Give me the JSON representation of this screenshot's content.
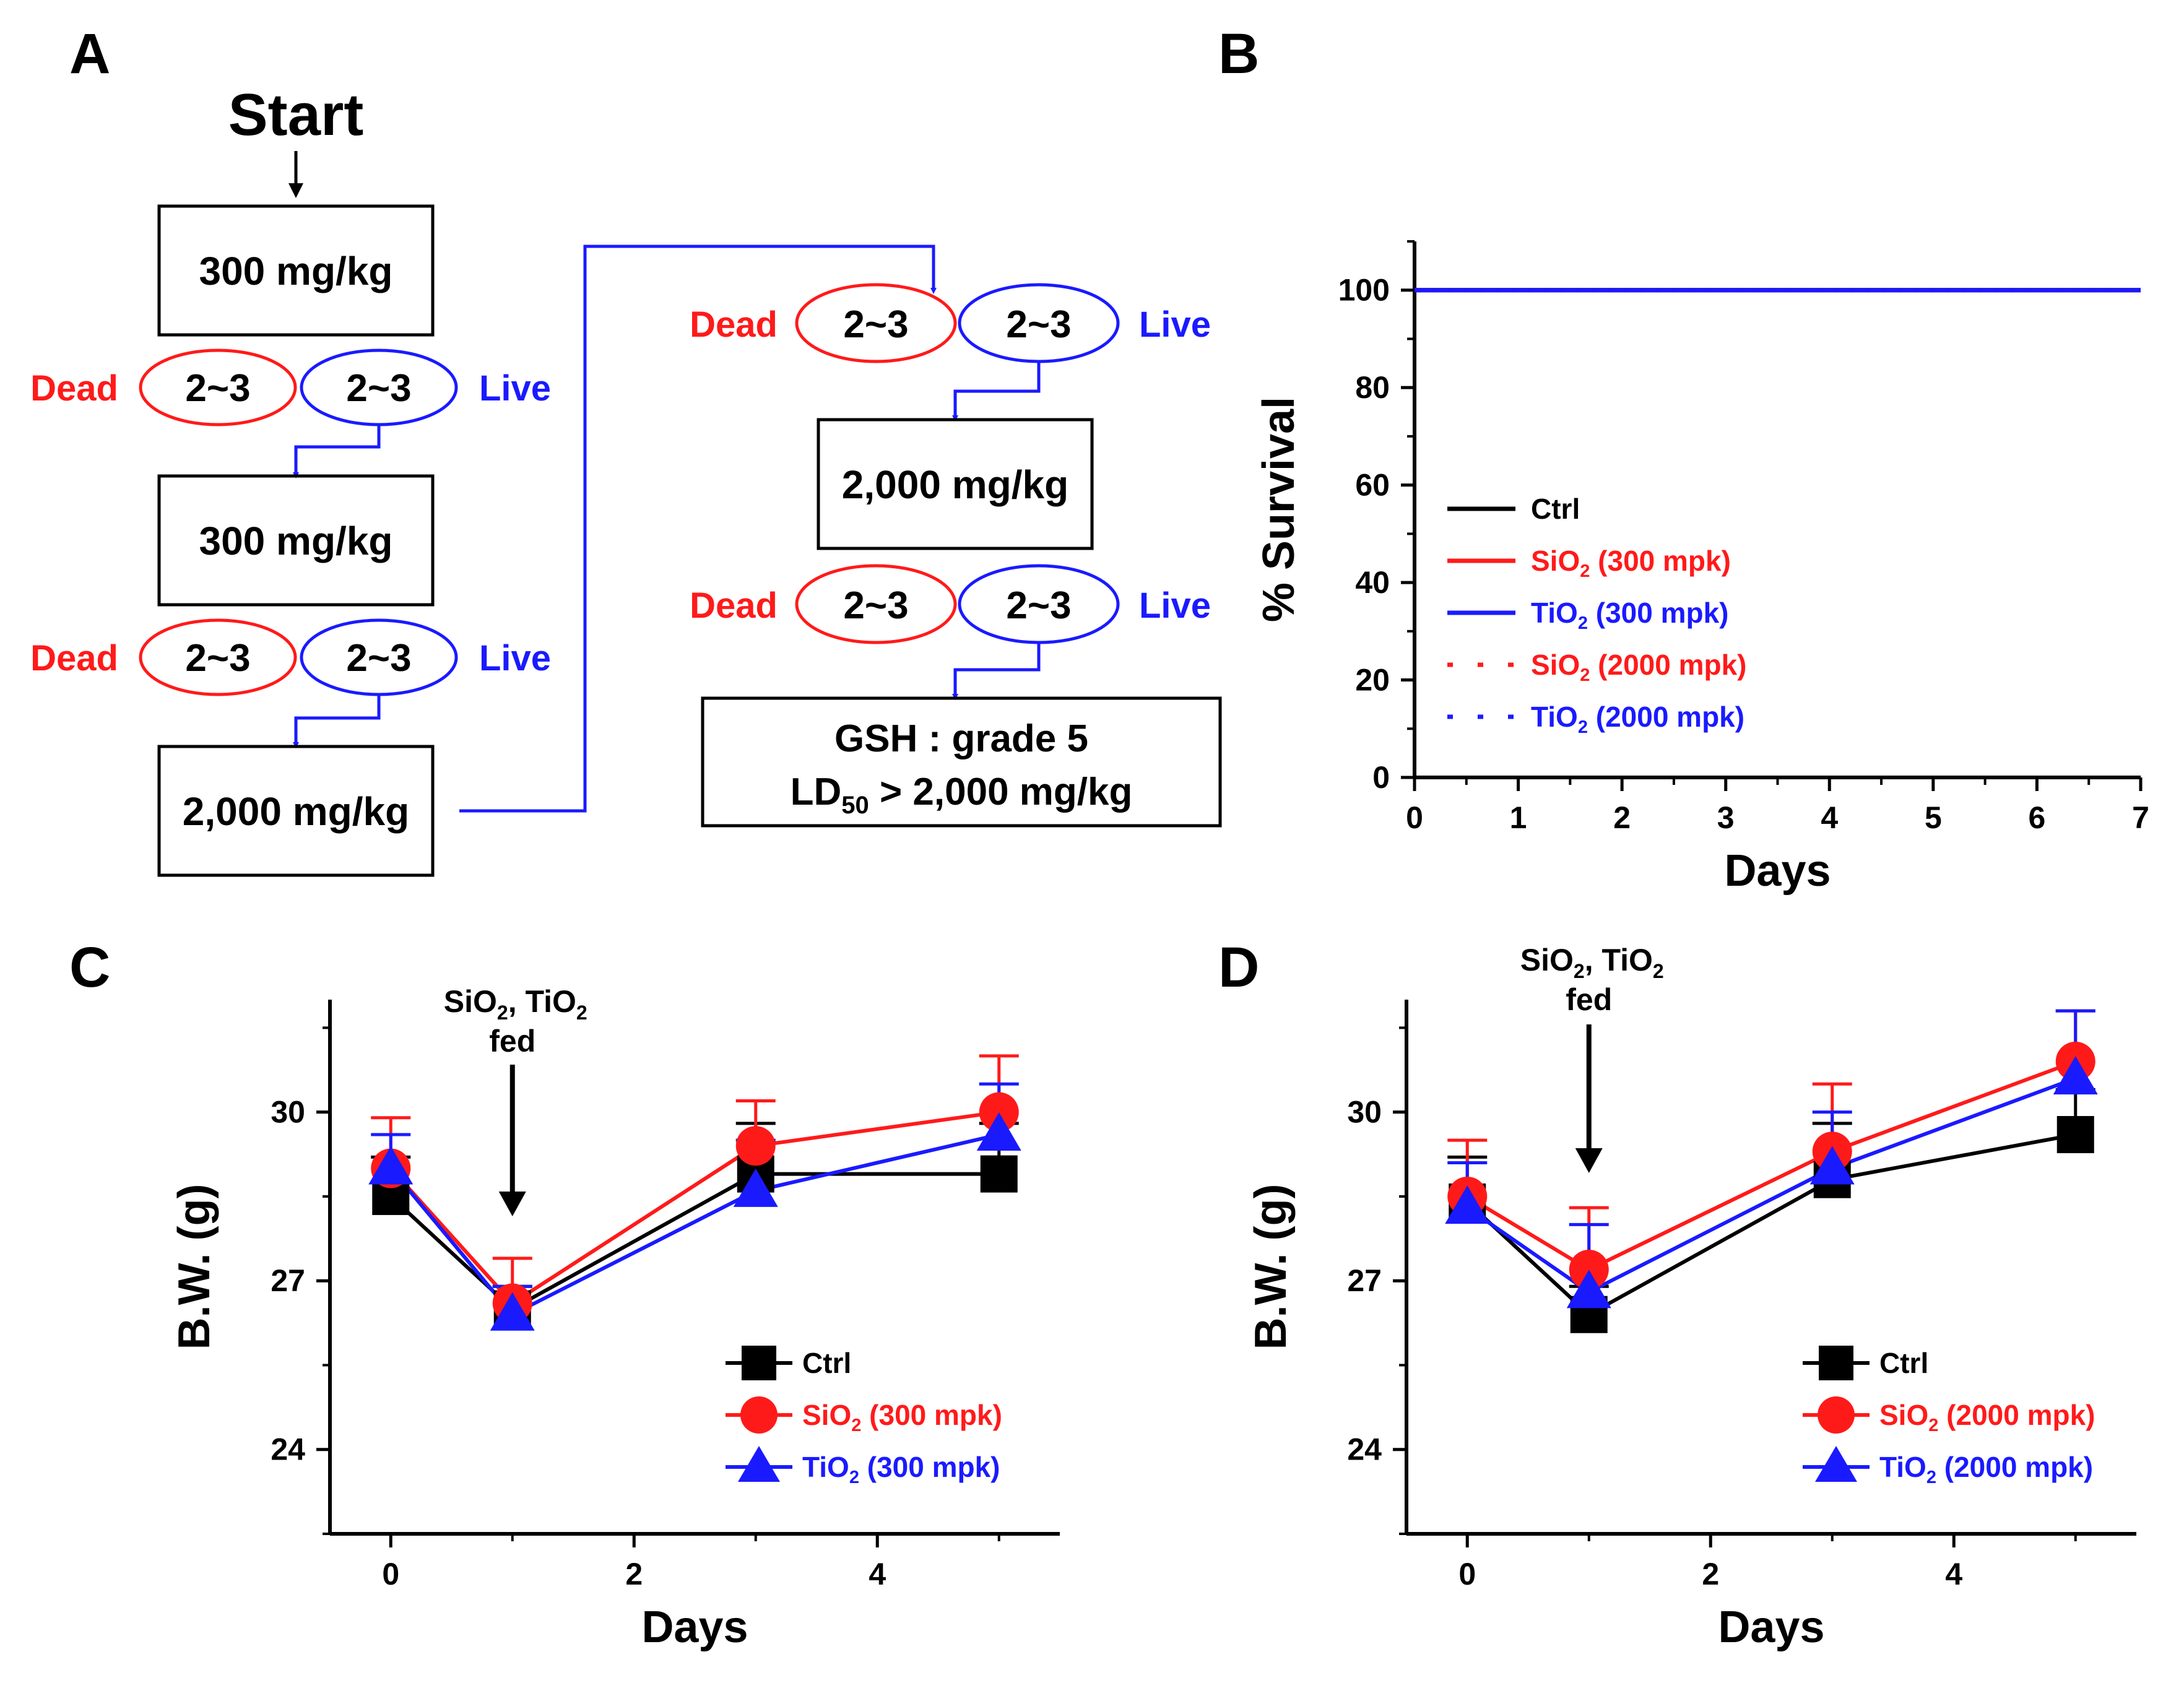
{
  "colors": {
    "black": "#000000",
    "red": "#ff1a1a",
    "blue": "#1a1aff"
  },
  "panel_labels": [
    "A",
    "B",
    "C",
    "D"
  ],
  "flow": {
    "start": "Start",
    "dead": "Dead",
    "live": "Live",
    "range": "2~3",
    "dose_300": "300 mg/kg",
    "dose_2000": "2,000 mg/kg",
    "result_line1": "GSH :  grade 5",
    "result_ld_prefix": "LD",
    "result_ld_sub": "50",
    "result_ld_suffix": " > 2,000 mg/kg"
  },
  "annotation": {
    "line1_a": "SiO",
    "sub": "2",
    "line1_b": ", TiO",
    "line2": "fed"
  },
  "chart_data": [
    {
      "panel": "B",
      "type": "line",
      "xlabel": "Days",
      "ylabel": "% Survival",
      "xlim": [
        0,
        7
      ],
      "ylim": [
        0,
        110
      ],
      "xticks": [
        0,
        1,
        2,
        3,
        4,
        5,
        6,
        7
      ],
      "yticks": [
        0,
        20,
        40,
        60,
        80,
        100
      ],
      "x": [
        0,
        7
      ],
      "series": [
        {
          "name": "Ctrl",
          "label_main": "Ctrl",
          "label_sub": "",
          "label_tail": "",
          "color": "#000000",
          "style": "solid",
          "values": [
            100,
            100
          ]
        },
        {
          "name": "SiO2 (300 mpk)",
          "label_main": "SiO",
          "label_sub": "2",
          "label_tail": " (300 mpk)",
          "color": "#ff1a1a",
          "style": "solid",
          "values": [
            100,
            100
          ]
        },
        {
          "name": "TiO2 (300 mpk)",
          "label_main": "TiO",
          "label_sub": "2",
          "label_tail": " (300 mpk)",
          "color": "#1a1aff",
          "style": "solid",
          "values": [
            100,
            100
          ]
        },
        {
          "name": "SiO2 (2000 mpk)",
          "label_main": "SiO",
          "label_sub": "2",
          "label_tail": " (2000 mpk)",
          "color": "#ff1a1a",
          "style": "dotted",
          "values": [
            100,
            100
          ]
        },
        {
          "name": "TiO2 (2000 mpk)",
          "label_main": "TiO",
          "label_sub": "2",
          "label_tail": " (2000 mpk)",
          "color": "#1a1aff",
          "style": "dotted",
          "values": [
            100,
            100
          ]
        }
      ]
    },
    {
      "panel": "C",
      "type": "line",
      "xlabel": "Days",
      "ylabel": "B.W. (g)",
      "xlim": [
        -0.5,
        5.5
      ],
      "ylim": [
        22.5,
        32.0
      ],
      "xticks": [
        0,
        2,
        4
      ],
      "yticks": [
        24,
        27,
        30
      ],
      "x": [
        0,
        1,
        3,
        5
      ],
      "arrow_day": 1,
      "series": [
        {
          "name": "Ctrl",
          "label_main": "Ctrl",
          "label_sub": "",
          "label_tail": "",
          "color": "#000000",
          "marker": "square",
          "values": [
            28.5,
            26.5,
            28.9,
            28.9
          ],
          "errors": [
            0.7,
            0.4,
            0.9,
            0.9
          ]
        },
        {
          "name": "SiO2 (300 mpk)",
          "label_main": "SiO",
          "label_sub": "2",
          "label_tail": " (300 mpk)",
          "color": "#ff1a1a",
          "marker": "circle",
          "values": [
            29.0,
            26.6,
            29.4,
            30.0
          ],
          "errors": [
            0.9,
            0.8,
            0.8,
            1.0
          ]
        },
        {
          "name": "TiO2 (300 mpk)",
          "label_main": "TiO",
          "label_sub": "2",
          "label_tail": " (300 mpk)",
          "color": "#1a1aff",
          "marker": "triangle",
          "values": [
            29.0,
            26.4,
            28.6,
            29.6
          ],
          "errors": [
            0.6,
            0.5,
            0.9,
            0.9
          ]
        }
      ]
    },
    {
      "panel": "D",
      "type": "line",
      "xlabel": "Days",
      "ylabel": "B.W. (g)",
      "xlim": [
        -0.5,
        5.5
      ],
      "ylim": [
        22.5,
        32.0
      ],
      "xticks": [
        0,
        2,
        4
      ],
      "yticks": [
        24,
        27,
        30
      ],
      "x": [
        0,
        1,
        3,
        5
      ],
      "arrow_day": 1,
      "series": [
        {
          "name": "Ctrl",
          "label_main": "Ctrl",
          "label_sub": "",
          "label_tail": "",
          "color": "#000000",
          "marker": "square",
          "values": [
            28.4,
            26.4,
            28.8,
            29.6
          ],
          "errors": [
            0.8,
            0.5,
            1.0,
            0.8
          ]
        },
        {
          "name": "SiO2 (2000 mpk)",
          "label_main": "SiO",
          "label_sub": "2",
          "label_tail": " (2000 mpk)",
          "color": "#ff1a1a",
          "marker": "circle",
          "values": [
            28.5,
            27.2,
            29.3,
            30.9
          ],
          "errors": [
            1.0,
            1.1,
            1.2,
            0.9
          ]
        },
        {
          "name": "TiO2 (2000 mpk)",
          "label_main": "TiO",
          "label_sub": "2",
          "label_tail": " (2000 mpk)",
          "color": "#1a1aff",
          "marker": "triangle",
          "values": [
            28.3,
            26.8,
            29.0,
            30.6
          ],
          "errors": [
            0.8,
            1.2,
            1.0,
            1.2
          ]
        }
      ]
    }
  ]
}
